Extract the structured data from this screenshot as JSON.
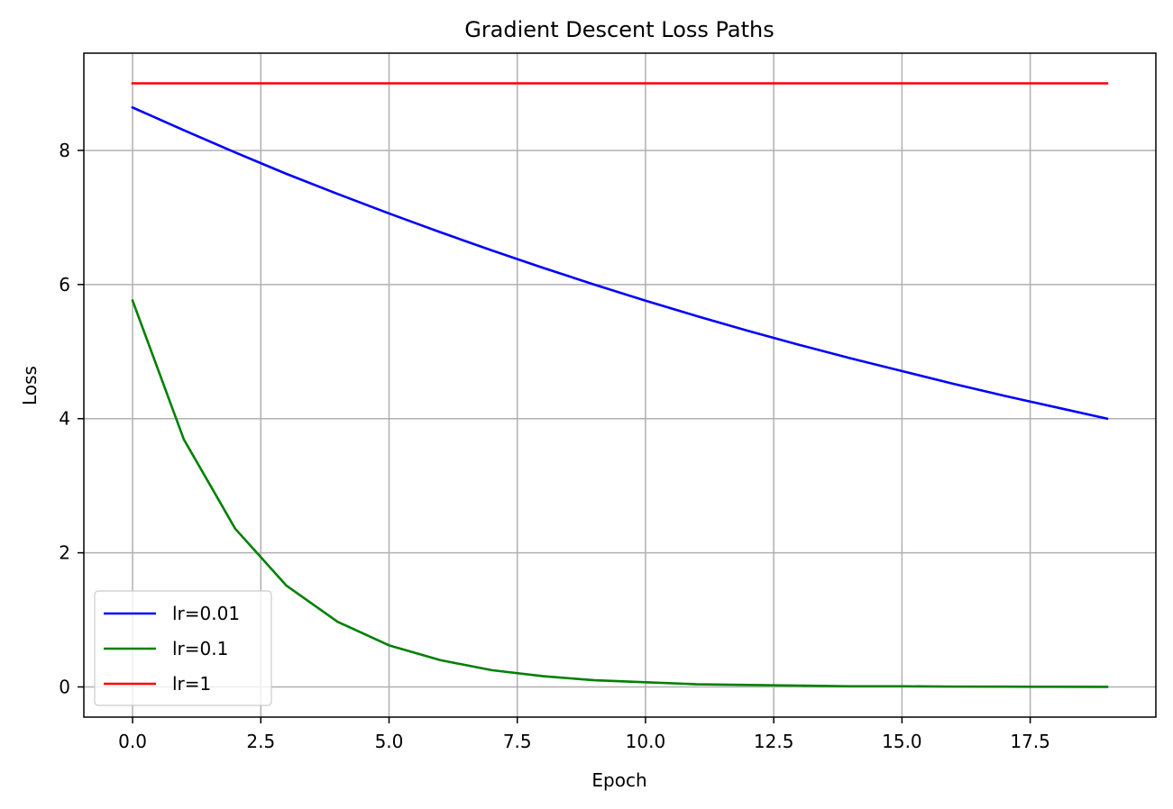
{
  "chart_data": {
    "type": "line",
    "title": "Gradient Descent Loss Paths",
    "xlabel": "Epoch",
    "ylabel": "Loss",
    "xlim": [
      -0.95,
      19.95
    ],
    "ylim": [
      -0.45,
      9.45
    ],
    "xticks": [
      0,
      2.5,
      5,
      7.5,
      10,
      12.5,
      15,
      17.5
    ],
    "xtick_labels": [
      "0.0",
      "2.5",
      "5.0",
      "7.5",
      "10.0",
      "12.5",
      "15.0",
      "17.5"
    ],
    "yticks": [
      0,
      2,
      4,
      6,
      8
    ],
    "ytick_labels": [
      "0",
      "2",
      "4",
      "6",
      "8"
    ],
    "grid": true,
    "legend_position": "lower-left",
    "x": [
      0,
      1,
      2,
      3,
      4,
      5,
      6,
      7,
      8,
      9,
      10,
      11,
      12,
      13,
      14,
      15,
      16,
      17,
      18,
      19
    ],
    "series": [
      {
        "name": "lr=0.01",
        "color": "#0000ff",
        "values": [
          8.64,
          8.3,
          7.97,
          7.65,
          7.35,
          7.06,
          6.78,
          6.51,
          6.25,
          6.0,
          5.76,
          5.53,
          5.31,
          5.1,
          4.9,
          4.71,
          4.52,
          4.34,
          4.17,
          4.0
        ]
      },
      {
        "name": "lr=0.1",
        "color": "#008000",
        "values": [
          5.76,
          3.69,
          2.36,
          1.51,
          0.97,
          0.62,
          0.4,
          0.25,
          0.16,
          0.1,
          0.07,
          0.04,
          0.03,
          0.02,
          0.01,
          0.01,
          0.005,
          0.004,
          0.002,
          0.001
        ]
      },
      {
        "name": "lr=1",
        "color": "#ff0000",
        "values": [
          9,
          9,
          9,
          9,
          9,
          9,
          9,
          9,
          9,
          9,
          9,
          9,
          9,
          9,
          9,
          9,
          9,
          9,
          9,
          9
        ]
      }
    ]
  }
}
